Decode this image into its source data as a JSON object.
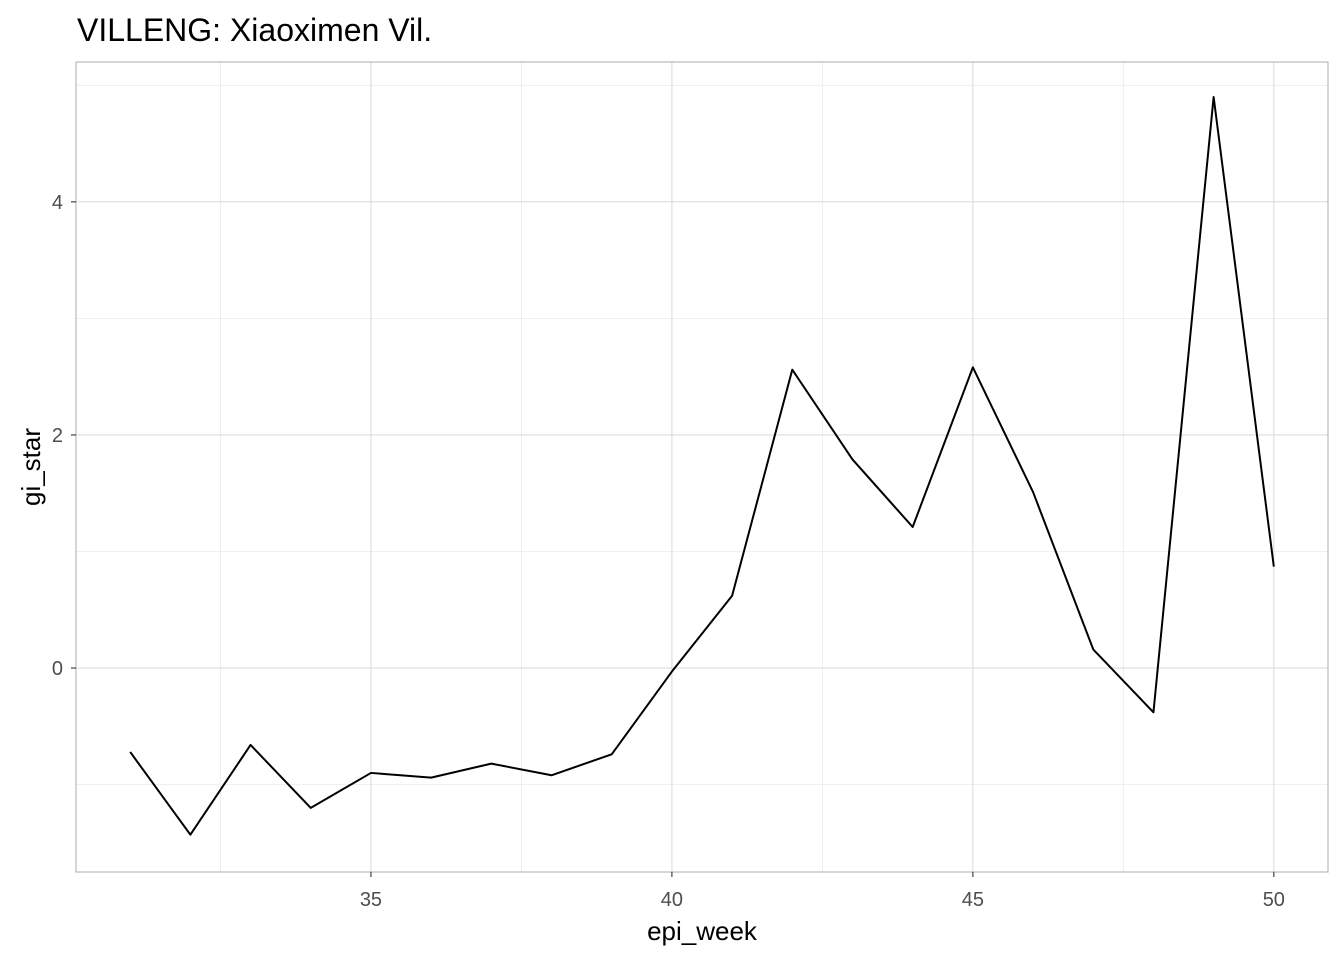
{
  "chart_data": {
    "type": "line",
    "title": "VILLENG: Xiaoximen Vil.",
    "xlabel": "epi_week",
    "ylabel": "gi_star",
    "xlim": [
      30.1,
      50.9
    ],
    "ylim": [
      -1.75,
      5.2
    ],
    "x_ticks": [
      35,
      40,
      45,
      50
    ],
    "y_ticks": [
      0,
      2,
      4
    ],
    "grid": true,
    "legend": "none",
    "series": [
      {
        "color": "#000000",
        "x": [
          31,
          32,
          33,
          34,
          35,
          36,
          37,
          38,
          39,
          40,
          41,
          42,
          43,
          44,
          45,
          46,
          47,
          48,
          49,
          50
        ],
        "y": [
          -0.72,
          -1.43,
          -0.66,
          -1.2,
          -0.9,
          -0.94,
          -0.82,
          -0.92,
          -0.74,
          -0.03,
          0.62,
          2.56,
          1.79,
          1.21,
          2.58,
          1.51,
          0.16,
          -0.38,
          4.9,
          0.87
        ]
      }
    ]
  }
}
